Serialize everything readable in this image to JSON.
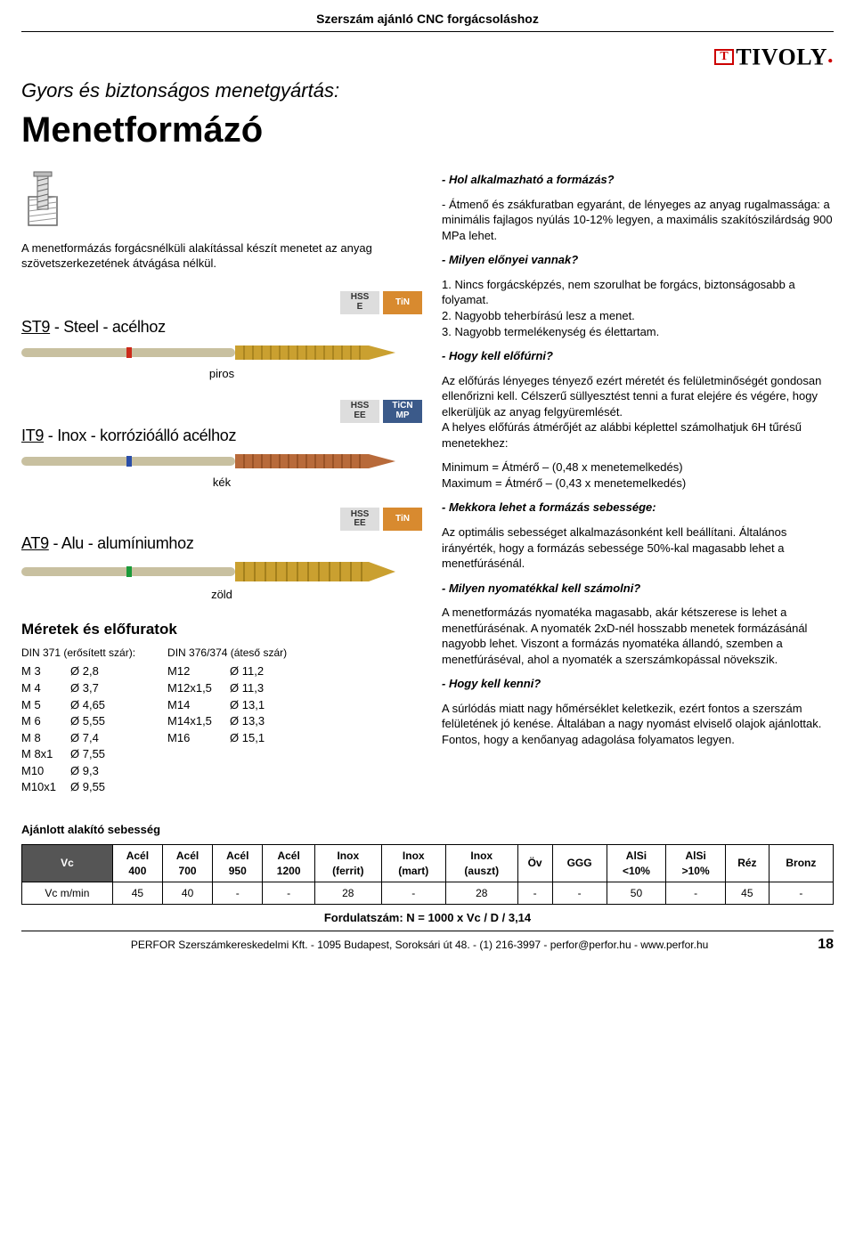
{
  "header": {
    "doc_title": "Szerszám ajánló CNC forgácsoláshoz"
  },
  "logo": {
    "mark": "T",
    "name": "TIVOLY",
    "dot": "."
  },
  "hero": {
    "subtitle": "Gyors és biztonságos menetgyártás:",
    "title": "Menetformázó"
  },
  "intro": "A menetformázás forgácsnélküli alakítással készít menetet az anyag szövetszerkezetének átvágása nélkül.",
  "variants": {
    "st9": {
      "code": "ST9",
      "rest": " - Steel - acélhoz",
      "color_label": "piros",
      "bar_gradient": "linear-gradient(90deg,#b0a890 0%,#d0c8a8 18%,#c89b2a 20%,#d8a930 60%,#c49028 100%)",
      "ring_color": "#cc2a1a",
      "badge1_top": "HSS",
      "badge1_bot": "E",
      "badge2": "TiN",
      "badge2_class": "badge-orange"
    },
    "it9": {
      "code": "IT9",
      "rest": " - Inox - korrózióálló acélhoz",
      "color_label": "kék",
      "bar_gradient": "linear-gradient(90deg,#b0a890 0%,#d0c8a8 18%,#b76a3a 20%,#c97c42 60%,#a85a2e 100%)",
      "ring_color": "#2a4ea8",
      "badge1_top": "HSS",
      "badge1_bot": "EE",
      "badge2_top": "TiCN",
      "badge2_bot": "MP",
      "badge2_class": "badge-blue"
    },
    "at9": {
      "code": "AT9",
      "rest": " - Alu - alumíniumhoz",
      "color_label": "zöld",
      "bar_gradient": "linear-gradient(90deg,#b0a890 0%,#d0c8a8 18%,#c89b2a 20%,#d8a930 60%,#c49028 100%)",
      "ring_color": "#1a9a3a",
      "badge1_top": "HSS",
      "badge1_bot": "EE",
      "badge2": "TiN",
      "badge2_class": "badge-orange"
    }
  },
  "sizes": {
    "title": "Méretek és előfuratok",
    "left_head": "DIN 371 (erősített szár):",
    "right_head": "DIN 376/374 (áteső szár)",
    "left_rows": [
      [
        "M 3",
        "Ø 2,8"
      ],
      [
        "M 4",
        "Ø 3,7"
      ],
      [
        "M 5",
        "Ø 4,65"
      ],
      [
        "M 6",
        "Ø 5,55"
      ],
      [
        "M 8",
        "Ø 7,4"
      ],
      [
        "M 8x1",
        "Ø 7,55"
      ],
      [
        "M10",
        "Ø 9,3"
      ],
      [
        "M10x1",
        "Ø 9,55"
      ]
    ],
    "right_rows": [
      [
        "M12",
        "Ø 11,2"
      ],
      [
        "M12x1,5",
        "Ø 11,3"
      ],
      [
        "M14",
        "Ø 13,1"
      ],
      [
        "M14x1,5",
        "Ø 13,3"
      ],
      [
        "M16",
        "Ø 15,1"
      ]
    ]
  },
  "rhs": {
    "q1": "- Hol alkalmazható a formázás?",
    "p1": "- Átmenő és zsákfuratban egyaránt, de lényeges az anyag rugalmassága: a minimális fajlagos nyúlás 10-12% legyen, a maximális szakítószilárdság 900 MPa lehet.",
    "q2": "- Milyen előnyei vannak?",
    "l1": "1. Nincs forgácsképzés, nem szorulhat be forgács, biztonságosabb a folyamat.",
    "l2": "2. Nagyobb teherbírású lesz a menet.",
    "l3": "3. Nagyobb termelékenység és élettartam.",
    "q3": "- Hogy kell előfúrni?",
    "p3a": "Az előfúrás lényeges tényező ezért méretét és felületminőségét gondosan ellenőrizni kell. Célszerű süllyesztést tenni a furat elejére és végére, hogy elkerüljük az anyag felgyüremlését.",
    "p3b": "A helyes előfúrás átmérőjét az alábbi képlettel számolhatjuk 6H tűrésű menetekhez:",
    "f_min": "Minimum = Átmérő – (0,48 x menetemelkedés)",
    "f_max": "Maximum = Átmérő – (0,43 x menetemelkedés)",
    "q4": "- Mekkora lehet a formázás sebessége:",
    "p4": "Az optimális sebességet alkalmazásonként kell beállítani. Általános irányérték, hogy a formázás sebessége 50%-kal magasabb lehet a menetfúrásénál.",
    "q5": "- Milyen nyomatékkal kell számolni?",
    "p5": "A menetformázás nyomatéka magasabb, akár kétszerese is lehet a menetfúrásénak. A nyomaték 2xD-nél hosszabb menetek formázásánál nagyobb lehet. Viszont a formázás nyomatéka állandó, szemben a menetfúráséval, ahol a nyomaték a szerszámkopással növekszik.",
    "q6": "- Hogy kell kenni?",
    "p6": "A súrlódás miatt nagy hőmérséklet keletkezik, ezért fontos a szerszám felületének jó kenése. Általában a nagy nyomást elviselő olajok ajánlottak. Fontos, hogy a kenőanyag adagolása folyamatos legyen."
  },
  "speed": {
    "title": "Ajánlott alakító sebesség",
    "vc": "Vc",
    "row_label": "Vc m/min",
    "cols": [
      "Acél 400",
      "Acél 700",
      "Acél 950",
      "Acél 1200",
      "Inox (ferrit)",
      "Inox (mart)",
      "Inox (auszt)",
      "Öv",
      "GGG",
      "AlSi <10%",
      "AlSi >10%",
      "Réz",
      "Bronz"
    ],
    "vals": [
      "45",
      "40",
      "-",
      "-",
      "28",
      "-",
      "28",
      "-",
      "-",
      "50",
      "-",
      "45",
      "-"
    ],
    "formula": "Fordulatszám: N = 1000 x Vc / D / 3,14"
  },
  "footer": {
    "text": "PERFOR Szerszámkereskedelmi Kft. - 1095 Budapest, Soroksári út 48. - (1) 216-3997 - perfor@perfor.hu - www.perfor.hu",
    "page": "18"
  }
}
